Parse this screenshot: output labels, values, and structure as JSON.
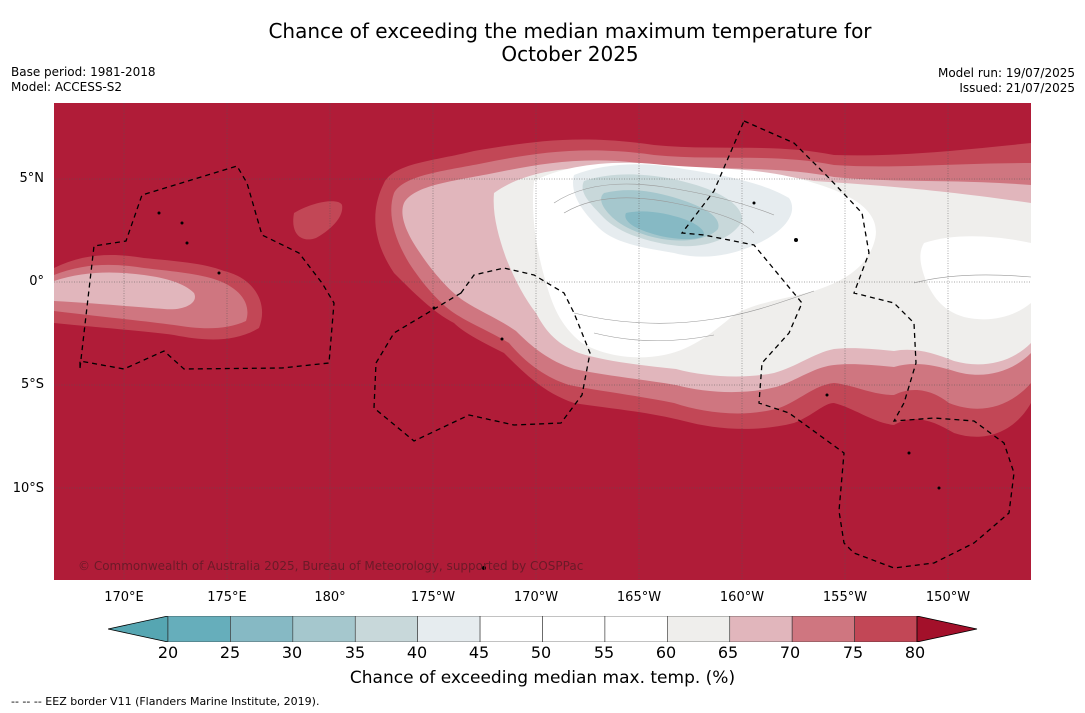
{
  "title": {
    "line1": "Chance of exceeding the median maximum temperature for",
    "line2": "October 2025"
  },
  "meta": {
    "base_period": "Base period: 1981-2018",
    "model": "Model: ACCESS-S2",
    "model_run": "Model run: 19/07/2025",
    "issued": "Issued: 21/07/2025"
  },
  "map": {
    "copyright": "© Commonwealth of Australia 2025, Bureau of Meteorology, supported by COSPPac",
    "lat_labels": [
      "5°N",
      "0°",
      "5°S",
      "10°S"
    ],
    "lon_labels": [
      "170°E",
      "175°E",
      "180°",
      "175°W",
      "170°W",
      "165°W",
      "160°W",
      "155°W",
      "150°W"
    ],
    "colors": {
      "c80": "#b01c38",
      "c75": "#c24756",
      "c70": "#cf7680",
      "c65": "#e1b6bc",
      "c60": "#efeeec",
      "c55": "#ffffff",
      "c40": "#e6ecef",
      "c35": "#c8d8da",
      "c30": "#a5c7cd",
      "c25": "#86b9c4",
      "c20": "#66aebb"
    }
  },
  "colorbar": {
    "ticks": [
      "20",
      "25",
      "30",
      "35",
      "40",
      "45",
      "50",
      "55",
      "60",
      "65",
      "70",
      "75",
      "80"
    ],
    "label": "Chance of exceeding median max. temp. (%)",
    "colors": [
      "#66aebb",
      "#86b9c4",
      "#a5c7cd",
      "#c8d8da",
      "#e6ecef",
      "#ffffff",
      "#ffffff",
      "#ffffff",
      "#efeeec",
      "#e1b6bc",
      "#cf7680",
      "#c24756",
      "#b01c38"
    ]
  },
  "footnote": "--  --  -- EEZ border V11 (Flanders Marine Institute, 2019)."
}
